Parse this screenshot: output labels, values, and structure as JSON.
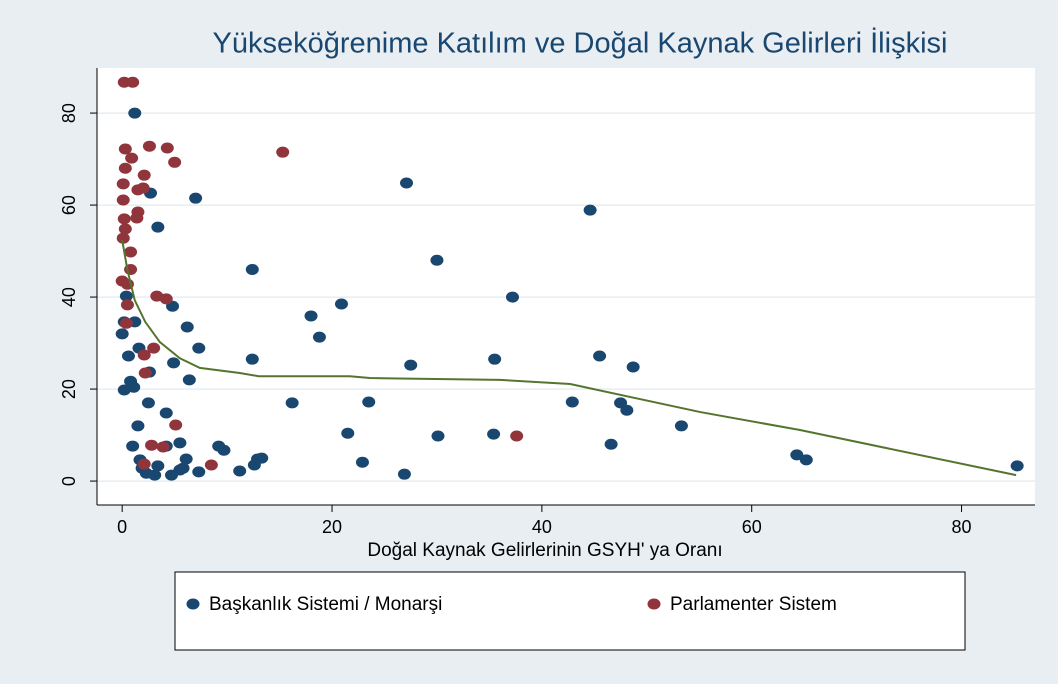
{
  "chart_data": {
    "type": "scatter",
    "title": "Yükseköğrenime Katılım ve Doğal Kaynak Gelirleri İlişkisi",
    "x_label": "Doğal Kaynak Gelirlerinin GSYH' ya Oranı",
    "xlim": [
      -2.4,
      87
    ],
    "ylim": [
      -5.2,
      89.8
    ],
    "xticks": [
      0,
      20,
      40,
      60,
      80
    ],
    "yticks": [
      0,
      20,
      40,
      60,
      80
    ],
    "grid": true,
    "legend": "bottom",
    "series": [
      {
        "name": "Başkanlık Sistemi / Monarşi",
        "color": "#1a476f",
        "x": [
          1.2,
          2.7,
          7,
          3.4,
          12.4,
          27.1,
          44.6,
          30,
          37.2,
          20.9,
          18,
          18.8,
          12.4,
          27.5,
          35.5,
          45.5,
          48.7,
          6.2,
          7.3,
          4.8,
          0.4,
          0.2,
          0,
          0.6,
          1.2,
          1.6,
          2.6,
          4.9,
          0.8,
          0.2,
          1.1,
          2.5,
          4.2,
          6.4,
          16.2,
          23.5,
          42.9,
          47.5,
          48.1,
          53.3,
          21.5,
          30.1,
          35.4,
          1.5,
          1,
          5.5,
          4.2,
          9.2,
          9.7,
          46.6,
          64.3,
          65.2,
          85.3,
          22.9,
          26.9,
          12.9,
          12.6,
          11.2,
          6.1,
          5.8,
          7.3,
          1.9,
          2.3,
          3.4,
          3.1,
          4.7,
          5.5,
          1.7,
          13.3
        ],
        "y": [
          80,
          62.6,
          61.5,
          55.2,
          46,
          64.8,
          58.9,
          48,
          40,
          38.5,
          35.9,
          31.3,
          26.5,
          25.2,
          26.5,
          27.2,
          24.8,
          33.5,
          28.9,
          38,
          40.2,
          34.6,
          32,
          27.2,
          34.6,
          28.9,
          23.7,
          25.7,
          21.7,
          19.8,
          20.4,
          17,
          14.8,
          22,
          17,
          17.2,
          17.2,
          17,
          15.4,
          12,
          10.4,
          9.8,
          10.2,
          12,
          7.6,
          8.3,
          7.6,
          7.6,
          6.7,
          8,
          5.7,
          4.6,
          3.3,
          4.1,
          1.5,
          4.8,
          3.5,
          2.2,
          4.8,
          2.8,
          2,
          2.8,
          1.7,
          3.3,
          1.3,
          1.3,
          2.4,
          4.6,
          5
        ]
      },
      {
        "name": "Parlamenter Sistem",
        "color": "#90353b",
        "x": [
          0.2,
          1,
          0.3,
          2.6,
          4.3,
          15.3,
          0.9,
          5,
          0.3,
          2.1,
          0.1,
          2,
          1.5,
          0.1,
          1.5,
          0.2,
          1.4,
          0.3,
          0.1,
          0.8,
          0.8,
          0,
          0.5,
          3.3,
          4.2,
          0.5,
          0.4,
          3,
          2.1,
          2.2,
          5.1,
          2.8,
          3.9,
          37.6,
          2.1,
          8.5
        ],
        "y": [
          86.7,
          86.7,
          72.2,
          72.8,
          72.4,
          71.5,
          70.2,
          69.3,
          68,
          66.5,
          64.6,
          63.7,
          63.3,
          61.1,
          58.5,
          57,
          57.2,
          54.8,
          52.8,
          49.8,
          46,
          43.5,
          42.8,
          40.2,
          39.6,
          38.3,
          34.3,
          28.9,
          27.4,
          23.5,
          12.2,
          7.8,
          7.4,
          9.8,
          3.7,
          3.5
        ]
      }
    ],
    "lowess": {
      "color": "#55752f",
      "x": [
        0,
        0.5,
        1.2,
        2.2,
        3.6,
        5.5,
        7.4,
        11.2,
        13,
        18.9,
        21.7,
        23.6,
        36,
        42.7,
        55.1,
        64.6,
        85.2
      ],
      "y": [
        52.4,
        45.9,
        39.3,
        34.6,
        30.2,
        26.7,
        24.6,
        23.5,
        22.8,
        22.8,
        22.8,
        22.4,
        22,
        21.1,
        15,
        11.1,
        1.3
      ]
    }
  }
}
